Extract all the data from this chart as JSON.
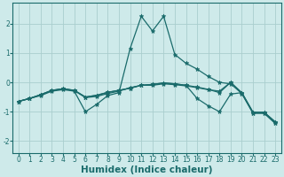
{
  "xlabel": "Humidex (Indice chaleur)",
  "ylabel": "",
  "xlim": [
    -0.5,
    23.5
  ],
  "ylim": [
    -2.4,
    2.7
  ],
  "background_color": "#ceeaea",
  "grid_color": "#aacece",
  "line_color": "#1a6b6b",
  "lines": [
    {
      "x": [
        0,
        1,
        2,
        3,
        4,
        5,
        6,
        7,
        8,
        9,
        10,
        11,
        12,
        13,
        14,
        15,
        16,
        17,
        18,
        19,
        20,
        21,
        22,
        23
      ],
      "y": [
        -0.65,
        -0.55,
        -0.45,
        -0.3,
        -0.25,
        -0.3,
        -1.0,
        -0.75,
        -0.45,
        -0.35,
        1.15,
        2.25,
        1.75,
        2.25,
        0.95,
        0.65,
        0.45,
        0.2,
        0.0,
        -0.05,
        -0.38,
        -1.05,
        -1.05,
        -1.4
      ]
    },
    {
      "x": [
        0,
        1,
        2,
        3,
        4,
        5,
        6,
        7,
        8,
        9,
        10,
        11,
        12,
        13,
        14,
        15,
        16,
        17,
        18,
        19,
        20,
        21,
        22,
        23
      ],
      "y": [
        -0.65,
        -0.55,
        -0.42,
        -0.28,
        -0.22,
        -0.28,
        -0.52,
        -0.48,
        -0.38,
        -0.3,
        -0.18,
        -0.1,
        -0.1,
        -0.05,
        -0.08,
        -0.12,
        -0.18,
        -0.25,
        -0.3,
        0.0,
        -0.38,
        -1.05,
        -1.05,
        -1.4
      ]
    },
    {
      "x": [
        0,
        1,
        2,
        3,
        4,
        5,
        6,
        7,
        8,
        9,
        10,
        11,
        12,
        13,
        14,
        15,
        16,
        17,
        18,
        19,
        20,
        21,
        22,
        23
      ],
      "y": [
        -0.65,
        -0.55,
        -0.42,
        -0.27,
        -0.22,
        -0.27,
        -0.5,
        -0.44,
        -0.34,
        -0.27,
        -0.2,
        -0.1,
        -0.07,
        -0.02,
        -0.05,
        -0.1,
        -0.16,
        -0.24,
        -0.35,
        0.0,
        -0.35,
        -1.02,
        -1.02,
        -1.35
      ]
    },
    {
      "x": [
        0,
        1,
        2,
        3,
        4,
        5,
        6,
        7,
        8,
        9,
        10,
        11,
        12,
        13,
        14,
        15,
        16,
        17,
        18,
        19,
        20,
        21,
        22,
        23
      ],
      "y": [
        -0.65,
        -0.55,
        -0.42,
        -0.27,
        -0.22,
        -0.27,
        -0.5,
        -0.44,
        -0.34,
        -0.27,
        -0.2,
        -0.1,
        -0.07,
        -0.02,
        -0.05,
        -0.1,
        -0.55,
        -0.8,
        -1.0,
        -0.4,
        -0.35,
        -1.02,
        -1.02,
        -1.35
      ]
    }
  ],
  "xticks": [
    0,
    1,
    2,
    3,
    4,
    5,
    6,
    7,
    8,
    9,
    10,
    11,
    12,
    13,
    14,
    15,
    16,
    17,
    18,
    19,
    20,
    21,
    22,
    23
  ],
  "yticks": [
    -2,
    -1,
    0,
    1,
    2
  ],
  "tick_fontsize": 5.5,
  "label_fontsize": 7.5
}
